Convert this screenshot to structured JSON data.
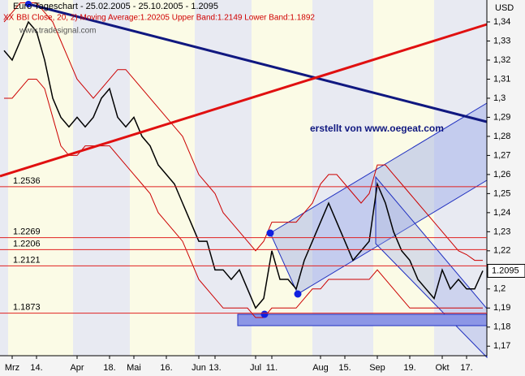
{
  "chart_data": {
    "type": "line",
    "title": "Euro Tageschart - 25.02.2005 - 25.10.2005 - 1.2095",
    "subtitle": "XX BBI Close, 20, 2) Moving Average:1.20205 Upper Band:1.2149 Lower Band:1.1892",
    "watermark": "www.tradesignal.com",
    "annotation": "erstellt von www.oegeat.com",
    "y_axis_label": "USD",
    "last_price": 1.2095,
    "categories": [
      null,
      "Mrz",
      null,
      null,
      "14.",
      null,
      null,
      null,
      null,
      "Apr",
      null,
      null,
      null,
      "18.",
      null,
      null,
      "Mai",
      null,
      null,
      null,
      "16.",
      null,
      null,
      null,
      "Jun",
      null,
      "13.",
      null,
      null,
      null,
      null,
      "Jul",
      null,
      "11.",
      null,
      null,
      null,
      null,
      null,
      "Aug",
      null,
      null,
      "15.",
      null,
      null,
      null,
      "Sep",
      null,
      null,
      null,
      "19.",
      null,
      null,
      null,
      "Okt",
      null,
      null,
      "17.",
      null,
      null
    ],
    "series": [
      {
        "name": "Close",
        "color": "#000000",
        "values": [
          1.325,
          1.32,
          1.33,
          1.34,
          1.335,
          1.32,
          1.3,
          1.29,
          1.285,
          1.29,
          1.285,
          1.29,
          1.3,
          1.305,
          1.29,
          1.285,
          1.29,
          1.28,
          1.275,
          1.265,
          1.26,
          1.255,
          1.245,
          1.235,
          1.225,
          1.225,
          1.21,
          1.21,
          1.205,
          1.21,
          1.2,
          1.19,
          1.195,
          1.22,
          1.205,
          1.205,
          1.2,
          1.215,
          1.225,
          1.235,
          1.245,
          1.235,
          1.225,
          1.215,
          1.22,
          1.225,
          1.255,
          1.245,
          1.23,
          1.22,
          1.215,
          1.205,
          1.2,
          1.195,
          1.21,
          1.2,
          1.205,
          1.2,
          1.2,
          1.2095
        ]
      },
      {
        "name": "Upper Band",
        "color": "#cc0000",
        "values": [
          1.34,
          1.345,
          1.35,
          1.35,
          1.35,
          1.345,
          1.34,
          1.33,
          1.32,
          1.31,
          1.305,
          1.3,
          1.305,
          1.31,
          1.315,
          1.315,
          1.31,
          1.305,
          1.3,
          1.295,
          1.29,
          1.285,
          1.28,
          1.27,
          1.26,
          1.255,
          1.25,
          1.24,
          1.235,
          1.23,
          1.225,
          1.22,
          1.225,
          1.235,
          1.235,
          1.235,
          1.235,
          1.24,
          1.245,
          1.255,
          1.26,
          1.26,
          1.255,
          1.25,
          1.245,
          1.25,
          1.265,
          1.265,
          1.26,
          1.255,
          1.25,
          1.245,
          1.24,
          1.235,
          1.23,
          1.225,
          1.22,
          1.218,
          1.215,
          1.215
        ]
      },
      {
        "name": "Lower Band",
        "color": "#cc0000",
        "values": [
          1.3,
          1.3,
          1.305,
          1.31,
          1.31,
          1.305,
          1.29,
          1.275,
          1.27,
          1.27,
          1.275,
          1.275,
          1.275,
          1.275,
          1.27,
          1.265,
          1.26,
          1.255,
          1.25,
          1.24,
          1.235,
          1.23,
          1.225,
          1.215,
          1.205,
          1.2,
          1.195,
          1.19,
          1.19,
          1.19,
          1.19,
          1.185,
          1.185,
          1.19,
          1.19,
          1.19,
          1.19,
          1.195,
          1.2,
          1.2,
          1.205,
          1.205,
          1.205,
          1.205,
          1.205,
          1.205,
          1.21,
          1.205,
          1.2,
          1.195,
          1.19,
          1.19,
          1.19,
          1.19,
          1.19,
          1.19,
          1.19,
          1.19,
          1.19,
          1.19
        ]
      }
    ],
    "levels": [
      1.2536,
      1.2269,
      1.2206,
      1.2121,
      1.1873
    ],
    "ylim": [
      1.165,
      1.3515
    ],
    "yticks": [
      {
        "value": 1.17,
        "label": "1,17"
      },
      {
        "value": 1.18,
        "label": "1,18"
      },
      {
        "value": 1.19,
        "label": "1,19"
      },
      {
        "value": 1.2,
        "label": "1,2"
      },
      {
        "value": 1.21,
        "label": "1,21"
      },
      {
        "value": 1.22,
        "label": "1,22"
      },
      {
        "value": 1.23,
        "label": "1,23"
      },
      {
        "value": 1.24,
        "label": "1,24"
      },
      {
        "value": 1.25,
        "label": "1,25"
      },
      {
        "value": 1.26,
        "label": "1,26"
      },
      {
        "value": 1.27,
        "label": "1,27"
      },
      {
        "value": 1.28,
        "label": "1,28"
      },
      {
        "value": 1.29,
        "label": "1,29"
      },
      {
        "value": 1.3,
        "label": "1,3"
      },
      {
        "value": 1.31,
        "label": "1,31"
      },
      {
        "value": 1.32,
        "label": "1,32"
      },
      {
        "value": 1.33,
        "label": "1,33"
      },
      {
        "value": 1.34,
        "label": "1,34"
      }
    ]
  }
}
